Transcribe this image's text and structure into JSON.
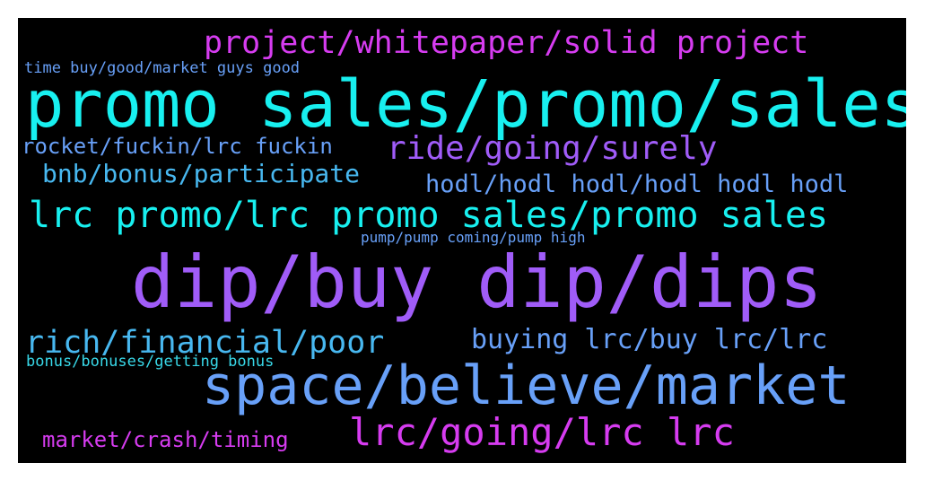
{
  "palette": {
    "background": "#000000",
    "magenta": "#d63cf0",
    "cyan": "#18f0f0",
    "violet": "#a05cf8",
    "blue": "#68a0f8",
    "sky": "#48b8f0",
    "teal": "#38d8e8"
  },
  "words": [
    {
      "id": "w1",
      "text": "project/whitepaper/solid project",
      "color": "#d63cf0"
    },
    {
      "id": "w2",
      "text": "time buy/good/market guys good",
      "color": "#68a0f8"
    },
    {
      "id": "w3",
      "text": "promo sales/promo/sales",
      "color": "#18f0f0"
    },
    {
      "id": "w4",
      "text": "rocket/fuckin/lrc fuckin",
      "color": "#68a0f8"
    },
    {
      "id": "w5",
      "text": "ride/going/surely",
      "color": "#a05cf8"
    },
    {
      "id": "w6",
      "text": "bnb/bonus/participate",
      "color": "#48b8f0"
    },
    {
      "id": "w7",
      "text": "hodl/hodl hodl/hodl hodl hodl",
      "color": "#68a0f8"
    },
    {
      "id": "w8",
      "text": "lrc promo/lrc promo sales/promo sales",
      "color": "#18f0f0"
    },
    {
      "id": "w9",
      "text": "pump/pump coming/pump high",
      "color": "#68a0f8"
    },
    {
      "id": "w10",
      "text": "dip/buy dip/dips",
      "color": "#a05cf8"
    },
    {
      "id": "w11",
      "text": "rich/financial/poor",
      "color": "#48b8f0"
    },
    {
      "id": "w12",
      "text": "buying lrc/buy lrc/lrc",
      "color": "#68a0f8"
    },
    {
      "id": "w13",
      "text": "bonus/bonuses/getting bonus",
      "color": "#38d8e8"
    },
    {
      "id": "w14",
      "text": "space/believe/market",
      "color": "#68a0f8"
    },
    {
      "id": "w15",
      "text": "market/crash/timing",
      "color": "#d63cf0"
    },
    {
      "id": "w16",
      "text": "lrc/going/lrc lrc",
      "color": "#d63cf0"
    }
  ]
}
